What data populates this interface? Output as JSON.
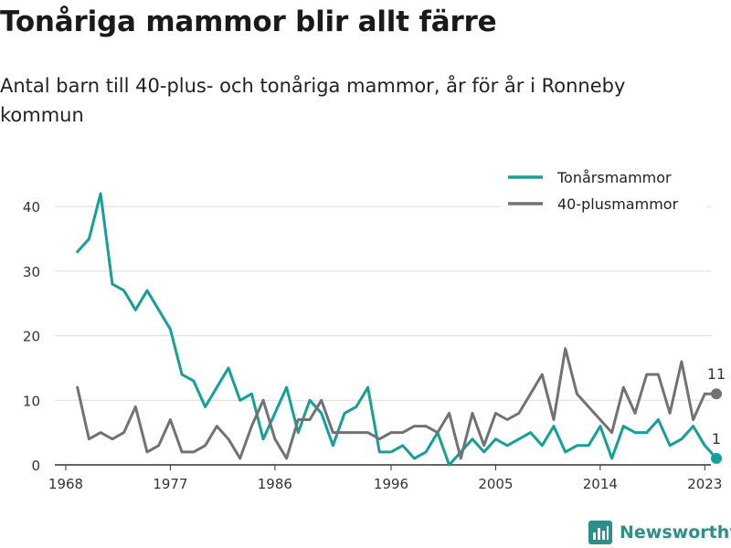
{
  "header": {
    "title": "Tonåriga mammor blir allt färre",
    "subtitle": "Antal barn till 40-plus- och tonåriga mammor, år för år i Ronneby kommun"
  },
  "brand": {
    "name": "Newsworthy",
    "color": "#2e8f8a",
    "logo_icon": "bar-chart-icon"
  },
  "chart_data": {
    "type": "line",
    "title": "",
    "xlabel": "",
    "ylabel": "",
    "x_ticks": [
      1968,
      1977,
      1986,
      1996,
      2005,
      2014,
      2023
    ],
    "y_ticks": [
      0,
      10,
      20,
      30,
      40
    ],
    "xlim": [
      1968,
      2024
    ],
    "ylim": [
      0,
      42
    ],
    "grid": true,
    "legend_position": "top-right",
    "x": [
      1969,
      1970,
      1971,
      1972,
      1973,
      1974,
      1975,
      1976,
      1977,
      1978,
      1979,
      1980,
      1981,
      1982,
      1983,
      1984,
      1985,
      1986,
      1987,
      1988,
      1989,
      1990,
      1991,
      1992,
      1993,
      1994,
      1995,
      1996,
      1997,
      1998,
      1999,
      2000,
      2001,
      2002,
      2003,
      2004,
      2005,
      2006,
      2007,
      2008,
      2009,
      2010,
      2011,
      2012,
      2013,
      2014,
      2015,
      2016,
      2017,
      2018,
      2019,
      2020,
      2021,
      2022,
      2023,
      2024
    ],
    "series": [
      {
        "name": "Tonårsmammor",
        "color": "#14a098",
        "values": [
          33,
          35,
          42,
          28,
          27,
          24,
          27,
          24,
          21,
          14,
          13,
          9,
          12,
          15,
          10,
          11,
          4,
          8,
          12,
          5,
          10,
          8,
          3,
          8,
          9,
          12,
          2,
          2,
          3,
          1,
          2,
          5,
          0,
          2,
          4,
          2,
          4,
          3,
          4,
          5,
          3,
          6,
          2,
          3,
          3,
          6,
          1,
          6,
          5,
          5,
          7,
          3,
          4,
          6,
          3,
          1
        ],
        "end_label": "1"
      },
      {
        "name": "40-plusmammor",
        "color": "#727274",
        "values": [
          12,
          4,
          5,
          4,
          5,
          9,
          2,
          3,
          7,
          2,
          2,
          3,
          6,
          4,
          1,
          6,
          10,
          4,
          1,
          7,
          7,
          10,
          5,
          5,
          5,
          5,
          4,
          5,
          5,
          6,
          6,
          5,
          8,
          1,
          8,
          3,
          8,
          7,
          8,
          11,
          14,
          7,
          18,
          11,
          9,
          7,
          5,
          12,
          8,
          14,
          14,
          8,
          16,
          7,
          11,
          11
        ],
        "end_label": "11"
      }
    ]
  }
}
